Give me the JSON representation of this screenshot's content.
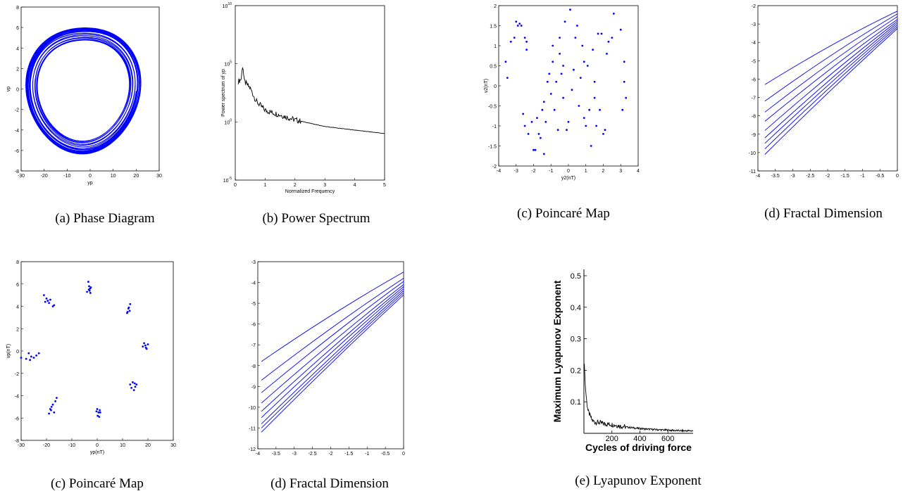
{
  "chart_data": [
    {
      "id": "a",
      "type": "line",
      "caption": "(a) Phase Diagram",
      "xlabel": "yp",
      "ylabel": "vp",
      "xlim": [
        -30,
        30
      ],
      "ylim": [
        -8,
        8
      ],
      "xticks": [
        "-30",
        "-20",
        "-10",
        "0",
        "10",
        "20",
        "30"
      ],
      "yticks": [
        "-8",
        "-6",
        "-4",
        "-2",
        "0",
        "2",
        "4",
        "6",
        "8"
      ],
      "series": [
        {
          "shape": "closed orbit",
          "center": [
            -3,
            0
          ],
          "x_extent": [
            -27,
            21
          ],
          "y_extent": [
            -6.4,
            6.4
          ],
          "color": "#0000ff"
        }
      ]
    },
    {
      "id": "b",
      "type": "line",
      "caption": "(b) Power Spectrum",
      "xlabel": "Normalized Frequency",
      "ylabel": "Power spectrum of yp",
      "xlim": [
        0,
        5
      ],
      "yscale": "log",
      "yticks": [
        {
          "base": "10",
          "exp": "10",
          "value": 10000000000.0
        },
        {
          "base": "10",
          "exp": "5",
          "value": 100000.0
        },
        {
          "base": "10",
          "exp": "0",
          "value": 1
        },
        {
          "base": "10",
          "exp": "-5",
          "value": 1e-05
        }
      ],
      "xticks": [
        "0",
        "1",
        "2",
        "3",
        "4",
        "5"
      ],
      "series": [
        {
          "color": "#000000",
          "x": [
            0.1,
            0.2,
            0.25,
            0.3,
            0.5,
            0.7,
            1,
            1.5,
            2,
            3,
            4,
            5
          ],
          "y": [
            3000,
            5000,
            100000,
            3000,
            800,
            60,
            10,
            4,
            1.5,
            0.4,
            0.2,
            0.1
          ]
        }
      ]
    },
    {
      "id": "c1",
      "type": "scatter",
      "caption": "(c) Poincaré Map",
      "xlabel": "y2(nT)",
      "ylabel": "v2(nT)",
      "xlim": [
        -4,
        4
      ],
      "ylim": [
        -2,
        2
      ],
      "xticks": [
        "-4",
        "-3",
        "-2",
        "-1",
        "0",
        "1",
        "2",
        "3",
        "4"
      ],
      "yticks": [
        "-2",
        "-1.5",
        "-1",
        "-0.5",
        "0",
        "0.5",
        "1",
        "1.5",
        "2"
      ],
      "points": [
        [
          -3.6,
          0.6
        ],
        [
          -3.5,
          0.2
        ],
        [
          -3.3,
          1.1
        ],
        [
          -3.1,
          1.2
        ],
        [
          -3.0,
          1.6
        ],
        [
          -2.9,
          1.5
        ],
        [
          -2.8,
          1.55
        ],
        [
          -2.7,
          1.5
        ],
        [
          -2.5,
          1.2
        ],
        [
          -2.4,
          0.9
        ],
        [
          -2.4,
          1.1
        ],
        [
          -2.6,
          -0.7
        ],
        [
          -2.5,
          -1.0
        ],
        [
          -2.3,
          -1.2
        ],
        [
          -2.1,
          -0.9
        ],
        [
          -2.0,
          -1.6
        ],
        [
          -1.9,
          -1.6
        ],
        [
          -1.8,
          -0.8
        ],
        [
          -1.7,
          -1.2
        ],
        [
          -1.6,
          -1.3
        ],
        [
          -1.5,
          -0.6
        ],
        [
          -1.4,
          -0.4
        ],
        [
          -1.3,
          -0.9
        ],
        [
          -1.4,
          -1.7
        ],
        [
          -1.2,
          0.1
        ],
        [
          -1.1,
          0.3
        ],
        [
          -1.0,
          -0.2
        ],
        [
          -0.9,
          0.6
        ],
        [
          -0.9,
          1.0
        ],
        [
          -0.8,
          -0.6
        ],
        [
          -0.7,
          0.1
        ],
        [
          -0.6,
          -1.1
        ],
        [
          -0.5,
          0.8
        ],
        [
          -0.5,
          1.2
        ],
        [
          -0.4,
          0.3
        ],
        [
          -0.3,
          0.5
        ],
        [
          -0.3,
          -0.3
        ],
        [
          -0.2,
          1.6
        ],
        [
          -0.1,
          -1.1
        ],
        [
          0.0,
          -0.9
        ],
        [
          0.1,
          1.9
        ],
        [
          0.2,
          -0.1
        ],
        [
          0.3,
          0.4
        ],
        [
          0.4,
          1.2
        ],
        [
          0.5,
          1.5
        ],
        [
          0.6,
          -0.5
        ],
        [
          0.7,
          0.2
        ],
        [
          0.8,
          1.0
        ],
        [
          0.9,
          -0.8
        ],
        [
          0.9,
          0.6
        ],
        [
          1.0,
          -1.0
        ],
        [
          1.1,
          0.5
        ],
        [
          1.2,
          -0.6
        ],
        [
          1.3,
          -1.5
        ],
        [
          1.4,
          0.9
        ],
        [
          1.5,
          -0.3
        ],
        [
          1.5,
          0.1
        ],
        [
          1.6,
          -1.0
        ],
        [
          1.7,
          1.3
        ],
        [
          1.8,
          -0.6
        ],
        [
          1.9,
          1.3
        ],
        [
          2.0,
          -1.2
        ],
        [
          2.1,
          -1.1
        ],
        [
          2.2,
          0.8
        ],
        [
          2.3,
          1.1
        ],
        [
          2.5,
          1.2
        ],
        [
          2.6,
          1.8
        ],
        [
          3.0,
          1.4
        ],
        [
          3.1,
          -0.6
        ],
        [
          3.2,
          0.6
        ],
        [
          3.2,
          0.1
        ],
        [
          3.3,
          -0.3
        ]
      ]
    },
    {
      "id": "d1",
      "type": "line",
      "caption": "(d) Fractal Dimension",
      "xlim": [
        -4,
        0
      ],
      "ylim": [
        -11,
        -2
      ],
      "xticks": [
        "-4",
        "-3.5",
        "-3",
        "-2.5",
        "-2",
        "-1.5",
        "-1",
        "-0.5",
        "0"
      ],
      "yticks": [
        "-11",
        "-10",
        "-9",
        "-8",
        "-7",
        "-6",
        "-5",
        "-4",
        "-3",
        "-2"
      ],
      "series": [
        {
          "x": [
            -3.8,
            0
          ],
          "y": [
            -6.3,
            -2.3
          ],
          "color": "#0000ff"
        },
        {
          "x": [
            -3.8,
            0
          ],
          "y": [
            -7.2,
            -2.45
          ],
          "color": "#0000ff"
        },
        {
          "x": [
            -3.8,
            0
          ],
          "y": [
            -7.8,
            -2.6
          ],
          "color": "#0000ff"
        },
        {
          "x": [
            -3.8,
            0
          ],
          "y": [
            -8.3,
            -2.75
          ],
          "color": "#0000ff"
        },
        {
          "x": [
            -3.8,
            0
          ],
          "y": [
            -8.8,
            -2.85
          ],
          "color": "#0000ff"
        },
        {
          "x": [
            -3.8,
            0
          ],
          "y": [
            -9.2,
            -2.95
          ],
          "color": "#0000ff"
        },
        {
          "x": [
            -3.8,
            0
          ],
          "y": [
            -9.5,
            -3.05
          ],
          "color": "#0000ff"
        },
        {
          "x": [
            -3.8,
            0
          ],
          "y": [
            -9.8,
            -3.15
          ],
          "color": "#0000ff"
        },
        {
          "x": [
            -3.8,
            0
          ],
          "y": [
            -10.1,
            -3.25
          ],
          "color": "#0000ff"
        }
      ]
    },
    {
      "id": "c2",
      "type": "scatter",
      "caption": "(c) Poincaré Map",
      "xlabel": "yp(nT)",
      "ylabel": "vp(nT)",
      "xlim": [
        -30,
        30
      ],
      "ylim": [
        -8,
        8
      ],
      "xticks": [
        "-30",
        "-20",
        "-10",
        "0",
        "10",
        "20",
        "30"
      ],
      "yticks": [
        "-8",
        "-6",
        "-4",
        "-2",
        "0",
        "2",
        "4",
        "6",
        "8"
      ],
      "points": [
        [
          -3.5,
          6.2
        ],
        [
          -3.2,
          5.8
        ],
        [
          -2.8,
          5.6
        ],
        [
          -3.0,
          5.4
        ],
        [
          -2.5,
          5.7
        ],
        [
          -4.0,
          5.3
        ],
        [
          -3.3,
          5.5
        ],
        [
          -2.7,
          5.2
        ],
        [
          -21,
          5.0
        ],
        [
          -20,
          4.7
        ],
        [
          -19.5,
          4.5
        ],
        [
          -19,
          4.3
        ],
        [
          -18.5,
          4.6
        ],
        [
          -17.5,
          4.0
        ],
        [
          -17,
          4.1
        ],
        [
          -20.5,
          4.4
        ],
        [
          12,
          3.5
        ],
        [
          12.5,
          3.9
        ],
        [
          13,
          4.2
        ],
        [
          12.8,
          3.6
        ],
        [
          12.3,
          3.8
        ],
        [
          11.8,
          3.4
        ],
        [
          18,
          0.4
        ],
        [
          19,
          0.5
        ],
        [
          19.5,
          0.2
        ],
        [
          18.5,
          0.7
        ],
        [
          20,
          0.6
        ],
        [
          19.2,
          0.3
        ],
        [
          -30,
          -0.6
        ],
        [
          -28,
          -0.7
        ],
        [
          -27,
          -0.2
        ],
        [
          -26,
          -0.5
        ],
        [
          -25,
          -0.6
        ],
        [
          -24,
          -0.4
        ],
        [
          -23,
          -0.2
        ],
        [
          -26.5,
          -0.8
        ],
        [
          14,
          -2.8
        ],
        [
          15,
          -3.2
        ],
        [
          13.5,
          -3.3
        ],
        [
          14.5,
          -3.5
        ],
        [
          15.5,
          -3.0
        ],
        [
          13,
          -3.0
        ],
        [
          14.8,
          -2.9
        ],
        [
          -19,
          -5.6
        ],
        [
          -18.5,
          -5.2
        ],
        [
          -18,
          -5.0
        ],
        [
          -17.5,
          -4.8
        ],
        [
          -17,
          -5.5
        ],
        [
          -16.5,
          -4.5
        ],
        [
          -16,
          -4.2
        ],
        [
          -18.2,
          -5.3
        ],
        [
          0,
          -5.2
        ],
        [
          0.5,
          -5.5
        ],
        [
          1,
          -5.3
        ],
        [
          0.2,
          -5.8
        ],
        [
          0.8,
          -5.9
        ],
        [
          1.2,
          -5.5
        ],
        [
          -0.3,
          -5.4
        ]
      ]
    },
    {
      "id": "d2",
      "type": "line",
      "caption": "(d) Fractal Dimension",
      "xlim": [
        -4,
        0
      ],
      "ylim": [
        -12,
        -3
      ],
      "xticks": [
        "-4",
        "-3.5",
        "-3",
        "-2.5",
        "-2",
        "-1.5",
        "-1",
        "-0.5",
        "0"
      ],
      "yticks": [
        "-12",
        "-11",
        "-10",
        "-9",
        "-8",
        "-7",
        "-6",
        "-5",
        "-4",
        "-3"
      ],
      "series": [
        {
          "x": [
            -3.9,
            0
          ],
          "y": [
            -7.8,
            -3.5
          ],
          "color": "#0000ff"
        },
        {
          "x": [
            -3.9,
            0
          ],
          "y": [
            -8.7,
            -3.8
          ],
          "color": "#0000ff"
        },
        {
          "x": [
            -3.9,
            0
          ],
          "y": [
            -9.3,
            -3.95
          ],
          "color": "#0000ff"
        },
        {
          "x": [
            -3.9,
            0
          ],
          "y": [
            -9.8,
            -4.1
          ],
          "color": "#0000ff"
        },
        {
          "x": [
            -3.9,
            0
          ],
          "y": [
            -10.2,
            -4.2
          ],
          "color": "#0000ff"
        },
        {
          "x": [
            -3.9,
            0
          ],
          "y": [
            -10.5,
            -4.3
          ],
          "color": "#0000ff"
        },
        {
          "x": [
            -3.9,
            0
          ],
          "y": [
            -10.8,
            -4.4
          ],
          "color": "#0000ff"
        },
        {
          "x": [
            -3.9,
            0
          ],
          "y": [
            -11.0,
            -4.5
          ],
          "color": "#0000ff"
        },
        {
          "x": [
            -3.9,
            0
          ],
          "y": [
            -11.2,
            -4.6
          ],
          "color": "#0000ff"
        }
      ]
    },
    {
      "id": "e",
      "type": "line",
      "caption": "(e) Lyapunov Exponent",
      "xlabel": "Cycles of driving force",
      "ylabel": "Maximum Lyapunov Exponent",
      "xlim": [
        0,
        780
      ],
      "ylim": [
        0,
        0.52
      ],
      "xticks": [
        "200",
        "400",
        "600"
      ],
      "yticks": [
        "0.1",
        "0.2",
        "0.3",
        "0.4",
        "0.5"
      ],
      "series": [
        {
          "color": "#000000",
          "x": [
            0,
            5,
            10,
            20,
            30,
            40,
            60,
            80,
            100,
            150,
            200,
            300,
            400,
            500,
            600,
            700,
            780
          ],
          "y": [
            0.22,
            0.21,
            0.15,
            0.1,
            0.07,
            0.06,
            0.04,
            0.035,
            0.035,
            0.03,
            0.028,
            0.02,
            0.015,
            0.012,
            0.01,
            0.008,
            0.008
          ]
        }
      ]
    }
  ]
}
